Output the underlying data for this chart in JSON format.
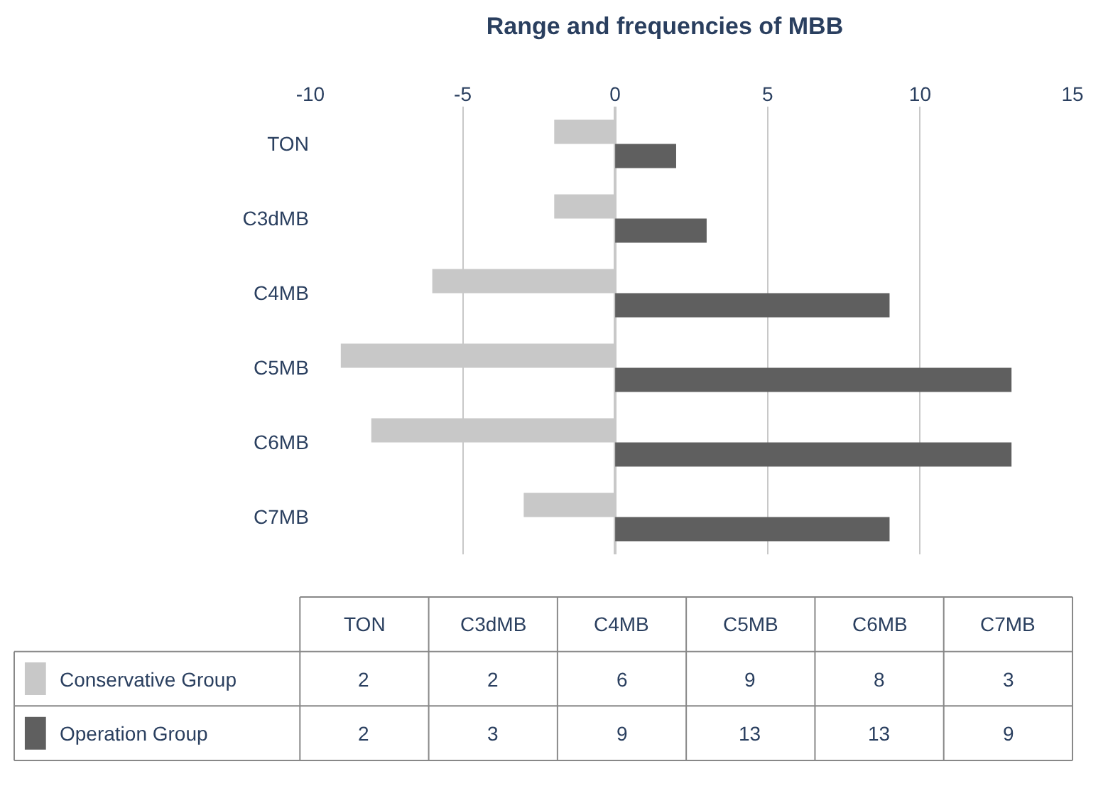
{
  "chart_data": [
    {
      "type": "bar",
      "orientation": "horizontal",
      "title": "Range and frequencies of MBB",
      "categories": [
        "TON",
        "C3dMB",
        "C4MB",
        "C5MB",
        "C6MB",
        "C7MB"
      ],
      "series": [
        {
          "color": "#c8c8c8",
          "values": [
            -2,
            -2,
            -6,
            -9,
            -8,
            -3
          ]
        },
        {
          "color": "#5f5f5f",
          "values": [
            2,
            3,
            9,
            13,
            13,
            9
          ]
        }
      ],
      "xlim": [
        -10,
        15
      ],
      "xticks": [
        -10,
        -5,
        0,
        5,
        10,
        15
      ],
      "grid": "x"
    },
    {
      "type": "other",
      "categories": [
        "TON",
        "C3dMB",
        "C4MB",
        "C5MB",
        "C6MB",
        "C7MB"
      ],
      "series": [
        {
          "name": "Conservative Group",
          "color": "#c8c8c8",
          "values": [
            2,
            2,
            6,
            9,
            8,
            3
          ]
        },
        {
          "name": "Operation Group",
          "color": "#5f5f5f",
          "values": [
            2,
            3,
            9,
            13,
            13,
            9
          ]
        }
      ],
      "data_labels": true
    }
  ]
}
